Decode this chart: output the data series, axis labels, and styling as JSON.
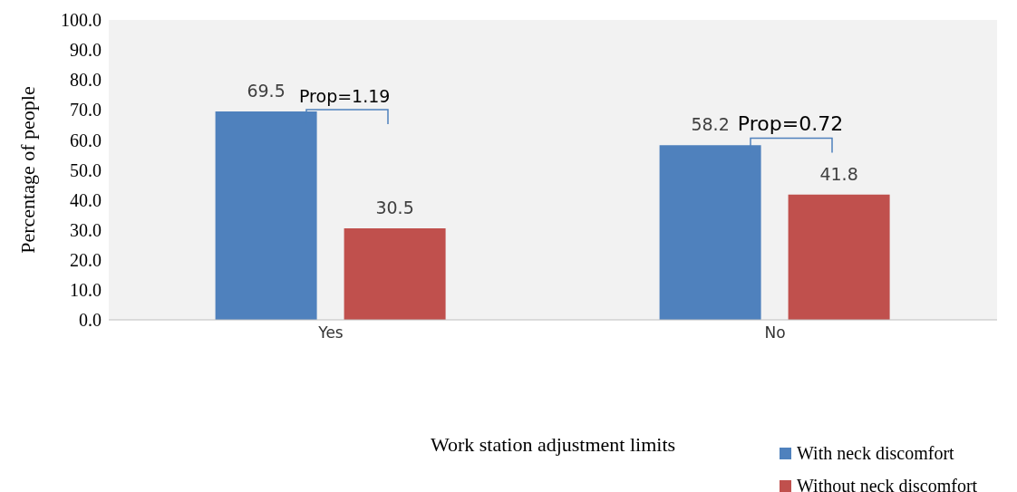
{
  "chart_data": {
    "type": "bar",
    "xlabel": "Work station adjustment limits",
    "ylabel": "Percentage of people",
    "categories": [
      "Yes",
      "No"
    ],
    "series": [
      {
        "name": "With neck discomfort",
        "color": "#4f81bd",
        "values": [
          69.5,
          58.2
        ]
      },
      {
        "name": "Without neck discomfort",
        "color": "#c0504d",
        "values": [
          30.5,
          41.8
        ]
      }
    ],
    "ylim": [
      0,
      100
    ],
    "yticks": [
      {
        "value": 0,
        "label": "0.0"
      },
      {
        "value": 10,
        "label": "10.0"
      },
      {
        "value": 20,
        "label": "20.0"
      },
      {
        "value": 30,
        "label": "30.0"
      },
      {
        "value": 40,
        "label": "40.0"
      },
      {
        "value": 50,
        "label": "50.0"
      },
      {
        "value": 60,
        "label": "60.0"
      },
      {
        "value": 70,
        "label": "70.0"
      },
      {
        "value": 80,
        "label": "80.0"
      },
      {
        "value": 90,
        "label": "90.0"
      },
      {
        "value": 100,
        "label": "100.0"
      }
    ],
    "data_labels": true,
    "grid": false,
    "legend": "bottom right",
    "annotations": [
      "Prop=1.19",
      "Prop=0.72"
    ]
  }
}
